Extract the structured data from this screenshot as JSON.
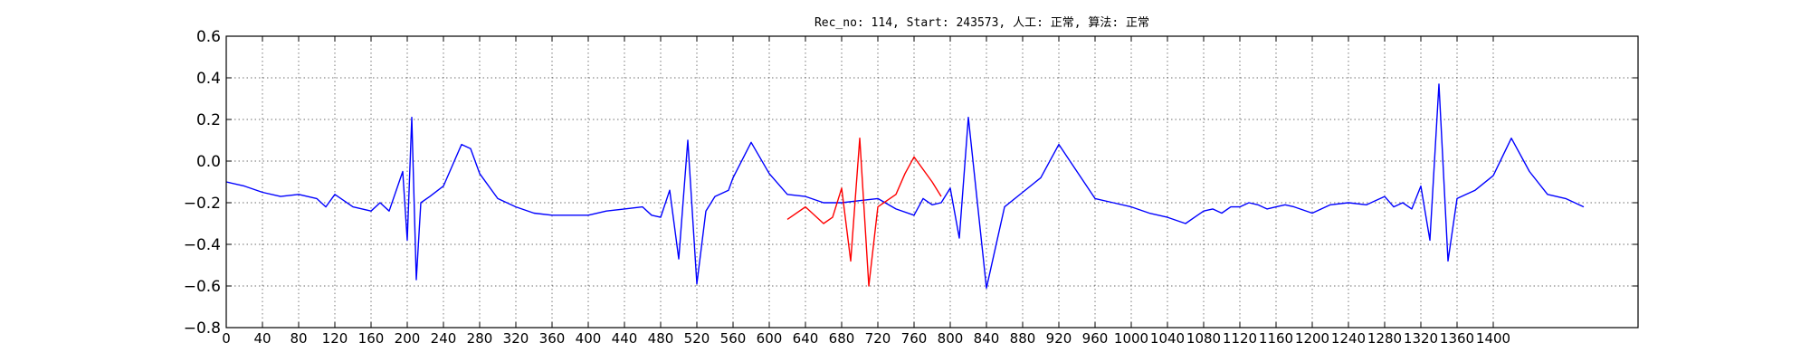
{
  "chart_data": {
    "type": "line",
    "title": "Rec_no: 114, Start: 243573, 人工: 正常, 算法: 正常",
    "xlabel": "",
    "ylabel": "",
    "xlim": [
      0,
      1560
    ],
    "ylim": [
      -0.8,
      0.6
    ],
    "grid": true,
    "yticks": [
      -0.8,
      -0.6,
      -0.4,
      -0.2,
      0.0,
      0.2,
      0.4,
      0.6
    ],
    "ytick_labels": [
      "−0.8",
      "−0.6",
      "−0.4",
      "−0.2",
      "0.0",
      "0.2",
      "0.4",
      "0.6"
    ],
    "xticks": [
      0,
      40,
      80,
      120,
      160,
      200,
      240,
      280,
      320,
      360,
      400,
      440,
      480,
      520,
      560,
      600,
      640,
      680,
      720,
      760,
      800,
      840,
      880,
      920,
      960,
      1000,
      1040,
      1080,
      1120,
      1160,
      1200,
      1240,
      1280,
      1320,
      1360,
      1400
    ],
    "series": [
      {
        "color": "#0000ff",
        "x": [
          0,
          20,
          40,
          60,
          80,
          100,
          110,
          120,
          140,
          160,
          170,
          180,
          195,
          200,
          205,
          210,
          215,
          225,
          240,
          250,
          260,
          270,
          280,
          300,
          320,
          340,
          360,
          380,
          400,
          420,
          440,
          460,
          470,
          480,
          490,
          500,
          510,
          520,
          530,
          540,
          555,
          560,
          580,
          600,
          620,
          640,
          660,
          680,
          700,
          720,
          740,
          760,
          770,
          780,
          790,
          800,
          810,
          820,
          840,
          860,
          880,
          900,
          920,
          940,
          960,
          980,
          1000,
          1020,
          1040,
          1060,
          1070,
          1080,
          1090,
          1100,
          1110,
          1120,
          1130,
          1140,
          1150,
          1160,
          1170,
          1180,
          1200,
          1220,
          1240,
          1260,
          1280,
          1290,
          1300,
          1310,
          1320,
          1330,
          1340,
          1350,
          1360,
          1370,
          1380,
          1400,
          1420,
          1440,
          1460,
          1480,
          1500
        ],
        "y": [
          -0.1,
          -0.12,
          -0.15,
          -0.17,
          -0.16,
          -0.18,
          -0.22,
          -0.16,
          -0.22,
          -0.24,
          -0.2,
          -0.24,
          -0.05,
          -0.38,
          0.21,
          -0.57,
          -0.2,
          -0.17,
          -0.12,
          -0.02,
          0.08,
          0.06,
          -0.06,
          -0.18,
          -0.22,
          -0.25,
          -0.26,
          -0.26,
          -0.26,
          -0.24,
          -0.23,
          -0.22,
          -0.26,
          -0.27,
          -0.14,
          -0.47,
          0.1,
          -0.59,
          -0.24,
          -0.17,
          -0.14,
          -0.08,
          0.09,
          -0.06,
          -0.16,
          -0.17,
          -0.2,
          -0.2,
          -0.19,
          -0.18,
          -0.23,
          -0.26,
          -0.18,
          -0.21,
          -0.2,
          -0.13,
          -0.37,
          0.21,
          -0.61,
          -0.22,
          -0.15,
          -0.08,
          0.08,
          -0.05,
          -0.18,
          -0.2,
          -0.22,
          -0.25,
          -0.27,
          -0.3,
          -0.27,
          -0.24,
          -0.23,
          -0.25,
          -0.22,
          -0.22,
          -0.2,
          -0.21,
          -0.23,
          -0.22,
          -0.21,
          -0.22,
          -0.25,
          -0.21,
          -0.2,
          -0.21,
          -0.17,
          -0.22,
          -0.2,
          -0.23,
          -0.12,
          -0.38,
          0.37,
          -0.48,
          -0.18,
          -0.16,
          -0.14,
          -0.07,
          0.11,
          -0.05,
          -0.16,
          -0.18,
          -0.22
        ]
      },
      {
        "color": "#ff0000",
        "x": [
          620,
          640,
          660,
          670,
          680,
          690,
          700,
          710,
          720,
          740,
          750,
          760,
          780,
          790
        ],
        "y": [
          -0.28,
          -0.22,
          -0.3,
          -0.27,
          -0.13,
          -0.48,
          0.11,
          -0.6,
          -0.22,
          -0.16,
          -0.06,
          0.02,
          -0.1,
          -0.17
        ]
      }
    ]
  }
}
